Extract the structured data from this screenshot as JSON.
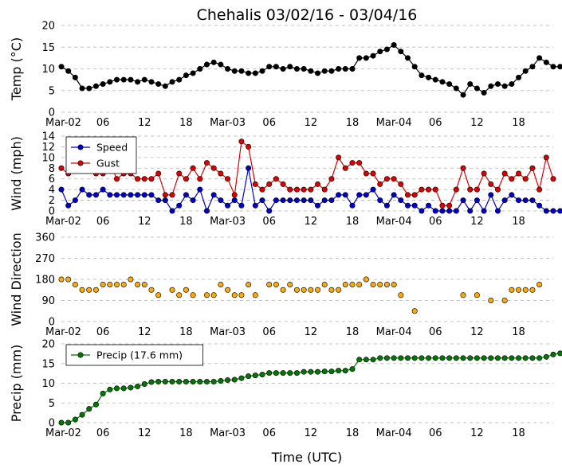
{
  "chart_data": {
    "type": "line",
    "title": "Chehalis 03/02/16 - 03/04/16",
    "xlabel": "Time (UTC)",
    "x_tick_labels": [
      "Mar-02",
      "06",
      "12",
      "18",
      "Mar-03",
      "06",
      "12",
      "18",
      "Mar-04",
      "06",
      "12",
      "18"
    ],
    "x_tick_hours": [
      0,
      6,
      12,
      18,
      24,
      30,
      36,
      42,
      48,
      54,
      60,
      66
    ],
    "x_range_hours": [
      0,
      71
    ],
    "sample_interval_hours": 1,
    "grid": true,
    "panels": [
      {
        "name": "temp",
        "ylabel": "Temp (°C)",
        "ylim": [
          0,
          20
        ],
        "yticks": [
          0,
          5,
          10,
          15,
          20
        ],
        "legend": null,
        "series": [
          {
            "name": "",
            "color": "#000000",
            "values": [
              10.5,
              9.5,
              8,
              5.5,
              5.5,
              6,
              6.5,
              7,
              7.5,
              7.5,
              7.5,
              7,
              7.5,
              7,
              6.5,
              6,
              7,
              7.5,
              8.5,
              9,
              10,
              11,
              11.5,
              11,
              10,
              9.5,
              9.5,
              9,
              9,
              9.5,
              10.5,
              10.5,
              10,
              10.5,
              10,
              10,
              9.5,
              9,
              9.5,
              9.5,
              10,
              10,
              10,
              12.5,
              12.5,
              13,
              14,
              14.5,
              15.5,
              14,
              12.5,
              10.5,
              8.5,
              8,
              7.5,
              7,
              6.5,
              5.5,
              4,
              6.5,
              5.5,
              4.5,
              6,
              6.5,
              6,
              6.5,
              8,
              9.5,
              10.5,
              12.5,
              11.5,
              10.5,
              10.5
            ]
          }
        ]
      },
      {
        "name": "wind",
        "ylabel": "Wind (mph)",
        "ylim": [
          0,
          14
        ],
        "yticks": [
          0,
          2,
          4,
          6,
          8,
          10,
          12,
          14
        ],
        "legend": "top-left",
        "series": [
          {
            "name": "Speed",
            "color": "#0000cc",
            "values": [
              4,
              1,
              2,
              4,
              3,
              3,
              4,
              3,
              3,
              3,
              3,
              3,
              3,
              3,
              2,
              2,
              0,
              1,
              3,
              2,
              4,
              0,
              3,
              2,
              1,
              2,
              1,
              8,
              1,
              2,
              0,
              2,
              2,
              2,
              2,
              2,
              2,
              1,
              2,
              2,
              3,
              3,
              1,
              3,
              3,
              4,
              2,
              1,
              3,
              2,
              1,
              1,
              0,
              1,
              0,
              0,
              0,
              0,
              2,
              0,
              2,
              0,
              3,
              0,
              2,
              3,
              2,
              2,
              2,
              1,
              0,
              0,
              0
            ]
          },
          {
            "name": "Gust",
            "color": "#dd0000",
            "values": [
              8,
              7,
              9,
              9,
              9,
              7,
              7,
              9,
              6,
              7,
              7,
              6,
              6,
              6,
              7,
              3,
              3,
              7,
              6,
              8,
              6,
              9,
              8,
              7,
              6,
              3,
              13,
              12,
              5,
              4,
              5,
              6,
              5,
              4,
              4,
              4,
              4,
              5,
              4,
              6,
              10,
              8,
              9,
              9,
              7,
              7,
              5,
              6,
              6,
              5,
              3,
              3,
              4,
              4,
              4,
              1,
              1,
              4,
              8,
              4,
              4,
              7,
              5,
              4,
              7,
              6,
              7,
              6,
              8,
              4,
              10,
              6,
              null
            ]
          }
        ]
      },
      {
        "name": "direction",
        "ylabel": "Wind Direction",
        "ylim": [
          0,
          360
        ],
        "yticks": [
          0,
          90,
          180,
          270,
          360
        ],
        "legend": null,
        "series": [
          {
            "name": "",
            "color": "#ffaa00",
            "values": [
              180,
              180,
              158,
              135,
              135,
              135,
              158,
              158,
              158,
              158,
              180,
              158,
              158,
              135,
              113,
              null,
              135,
              113,
              135,
              113,
              null,
              113,
              113,
              158,
              135,
              113,
              113,
              158,
              113,
              null,
              158,
              158,
              135,
              158,
              135,
              135,
              135,
              135,
              158,
              135,
              135,
              158,
              158,
              158,
              180,
              158,
              158,
              158,
              158,
              113,
              null,
              45,
              null,
              null,
              null,
              null,
              null,
              null,
              113,
              null,
              113,
              null,
              90,
              null,
              90,
              135,
              135,
              135,
              135,
              158,
              null,
              null,
              null
            ]
          }
        ]
      },
      {
        "name": "precip",
        "ylabel": "Precip (mm)",
        "ylim": [
          0,
          20
        ],
        "yticks": [
          0,
          5,
          10,
          15,
          20
        ],
        "legend": "top-left",
        "series": [
          {
            "name": "Precip (17.6 mm)",
            "color": "#007700",
            "values": [
              0,
              0,
              0.8,
              2,
              3.5,
              4.6,
              7.4,
              8.4,
              8.7,
              8.7,
              8.9,
              9.2,
              9.8,
              10.3,
              10.4,
              10.4,
              10.4,
              10.4,
              10.4,
              10.4,
              10.4,
              10.4,
              10.4,
              10.6,
              10.8,
              10.9,
              11.3,
              11.8,
              12,
              12.2,
              12.6,
              12.6,
              12.6,
              12.6,
              12.6,
              12.9,
              12.9,
              12.9,
              13,
              13,
              13.2,
              13.2,
              13.6,
              16,
              16,
              16,
              16.4,
              16.4,
              16.4,
              16.4,
              16.4,
              16.4,
              16.4,
              16.4,
              16.4,
              16.4,
              16.4,
              16.4,
              16.4,
              16.4,
              16.4,
              16.4,
              16.4,
              16.4,
              16.4,
              16.4,
              16.4,
              16.4,
              16.4,
              16.4,
              16.7,
              17.3,
              17.6
            ]
          }
        ]
      }
    ]
  }
}
